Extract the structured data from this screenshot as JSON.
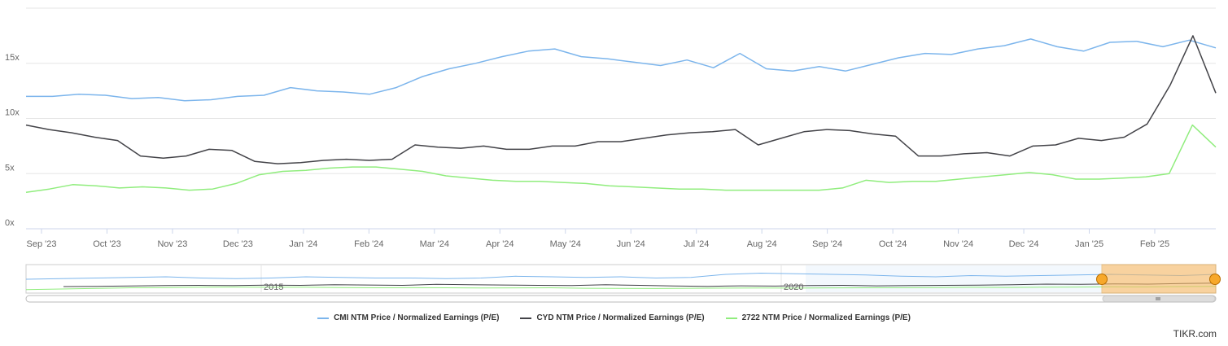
{
  "chart_data": {
    "type": "line",
    "x_ticks": [
      "Sep '23",
      "Oct '23",
      "Nov '23",
      "Dec '23",
      "Jan '24",
      "Feb '24",
      "Mar '24",
      "Apr '24",
      "May '24",
      "Jun '24",
      "Jul '24",
      "Aug '24",
      "Sep '24",
      "Oct '24",
      "Nov '24",
      "Dec '24",
      "Jan '25",
      "Feb '25"
    ],
    "y_ticks": [
      "0x",
      "5x",
      "10x",
      "15x"
    ],
    "ylim": [
      0,
      20
    ],
    "grid": true,
    "legend_position": "bottom-center",
    "series": [
      {
        "name": "CMI NTM Price / Normalized Earnings (P/E)",
        "color": "#7cb5ec",
        "values": [
          12.0,
          12.0,
          12.2,
          12.1,
          11.8,
          11.9,
          11.6,
          11.7,
          12.0,
          12.1,
          12.8,
          12.5,
          12.4,
          12.2,
          12.8,
          13.8,
          14.5,
          15.0,
          15.6,
          16.1,
          16.3,
          15.6,
          15.4,
          15.1,
          14.8,
          15.3,
          14.6,
          15.9,
          14.5,
          14.3,
          14.7,
          14.3,
          14.9,
          15.5,
          15.9,
          15.8,
          16.3,
          16.6,
          17.2,
          16.5,
          16.1,
          16.9,
          17.0,
          16.5,
          17.1,
          16.4
        ]
      },
      {
        "name": "CYD NTM Price / Normalized Earnings (P/E)",
        "color": "#434348",
        "values": [
          9.4,
          9.0,
          8.7,
          8.3,
          8.0,
          6.6,
          6.4,
          6.6,
          7.2,
          7.1,
          6.1,
          5.9,
          6.0,
          6.2,
          6.3,
          6.2,
          6.3,
          7.6,
          7.4,
          7.3,
          7.5,
          7.2,
          7.2,
          7.5,
          7.5,
          7.9,
          7.9,
          8.2,
          8.5,
          8.7,
          8.8,
          9.0,
          7.6,
          8.2,
          8.8,
          9.0,
          8.9,
          8.6,
          8.4,
          6.6,
          6.6,
          6.8,
          6.9,
          6.6,
          7.5,
          7.6,
          8.2,
          8.0,
          8.3,
          9.5,
          13.0,
          17.5,
          12.3
        ]
      },
      {
        "name": "2722 NTM Price / Normalized Earnings (P/E)",
        "color": "#90ed7d",
        "values": [
          3.3,
          3.6,
          4.0,
          3.9,
          3.7,
          3.8,
          3.7,
          3.5,
          3.6,
          4.1,
          4.9,
          5.2,
          5.3,
          5.5,
          5.6,
          5.6,
          5.4,
          5.2,
          4.8,
          4.6,
          4.4,
          4.3,
          4.3,
          4.2,
          4.1,
          3.9,
          3.8,
          3.7,
          3.6,
          3.6,
          3.5,
          3.5,
          3.5,
          3.5,
          3.5,
          3.7,
          4.4,
          4.2,
          4.3,
          4.3,
          4.5,
          4.7,
          4.9,
          5.1,
          4.9,
          4.5,
          4.5,
          4.6,
          4.7,
          5.0,
          9.4,
          7.4
        ]
      }
    ]
  },
  "navigator": {
    "labels": [
      "2015",
      "2020"
    ]
  },
  "credit": "TIKR.com"
}
